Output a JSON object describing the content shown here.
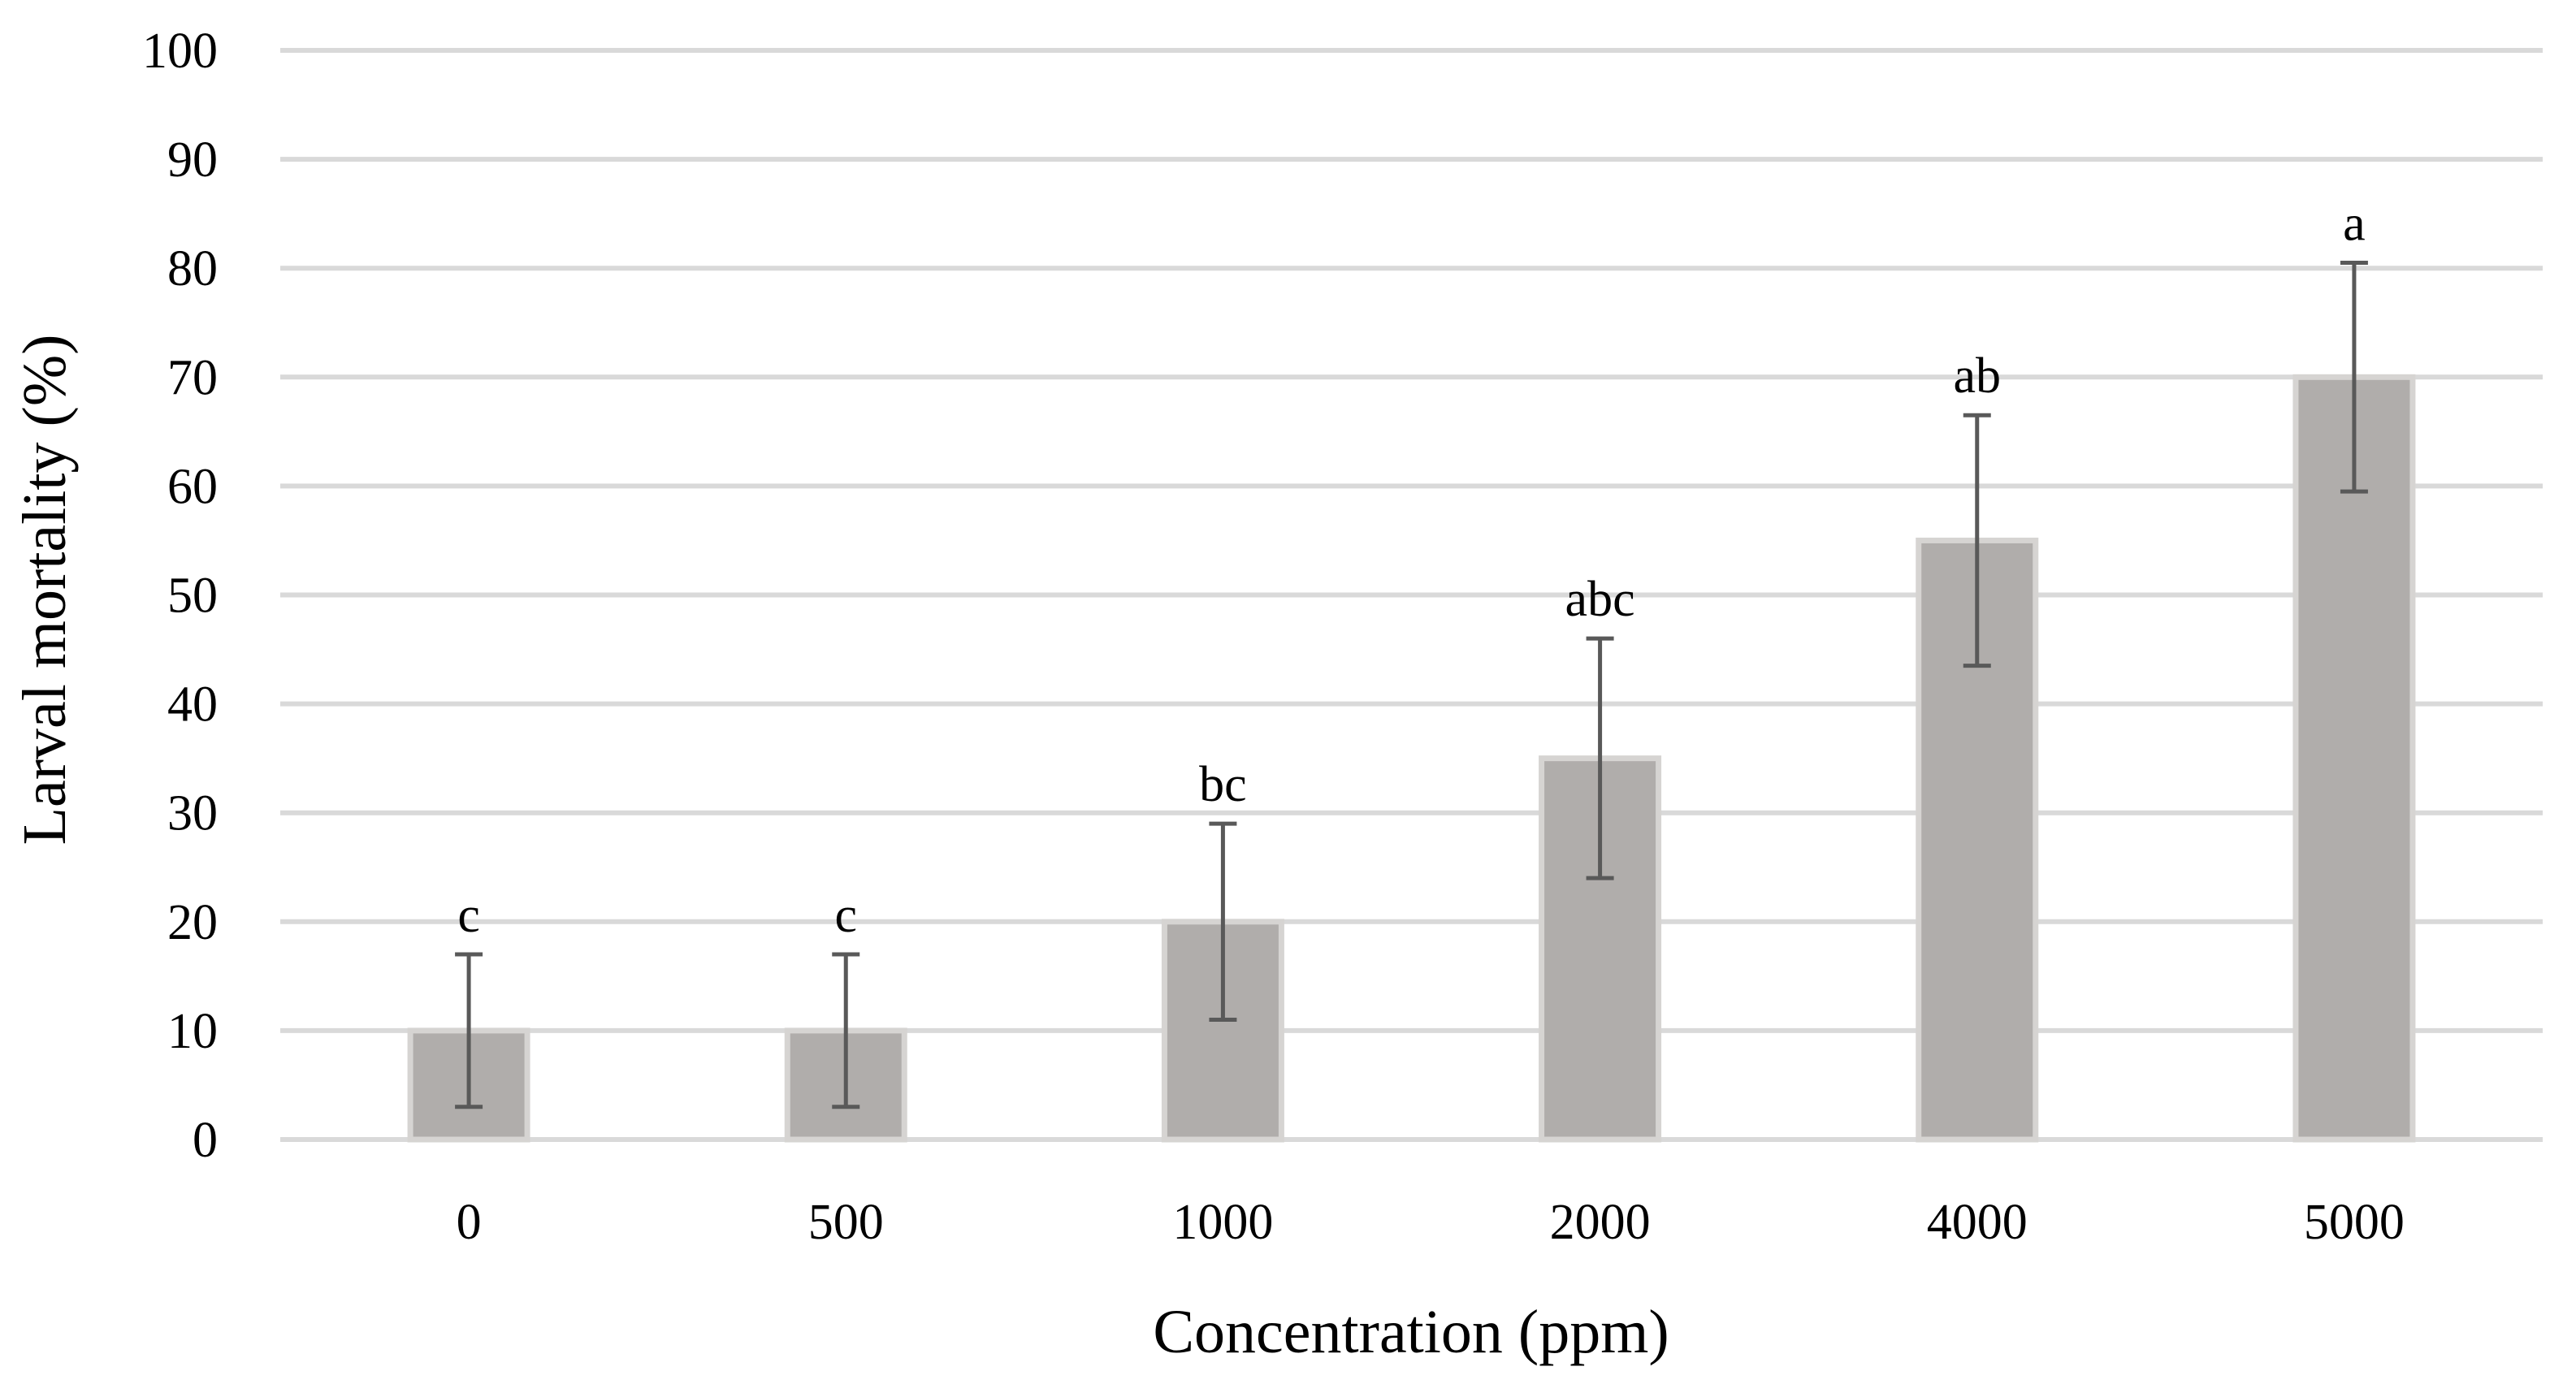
{
  "chart_data": {
    "type": "bar",
    "title": "",
    "xlabel": "Concentration (ppm)",
    "ylabel": "Larval mortality (%)",
    "categories": [
      "0",
      "500",
      "1000",
      "2000",
      "4000",
      "5000"
    ],
    "values": [
      10,
      10,
      20,
      35,
      55,
      70
    ],
    "error_bars": [
      {
        "low": 3,
        "high": 17
      },
      {
        "low": 3,
        "high": 17
      },
      {
        "low": 11,
        "high": 29
      },
      {
        "low": 24,
        "high": 46
      },
      {
        "low": 43.5,
        "high": 66.5
      },
      {
        "low": 59.5,
        "high": 80.5
      }
    ],
    "significance_labels": [
      "c",
      "c",
      "bc",
      "abc",
      "ab",
      "a"
    ],
    "ylim": [
      0,
      100
    ],
    "yticks": [
      "0",
      "10",
      "20",
      "30",
      "40",
      "50",
      "60",
      "70",
      "80",
      "90",
      "100"
    ],
    "grid": true,
    "legend": "none",
    "colors": {
      "bar_fill": "#b0adab",
      "bar_stroke": "#d6d4d2",
      "grid": "#d9d9d9",
      "error_bar": "#595959"
    }
  }
}
